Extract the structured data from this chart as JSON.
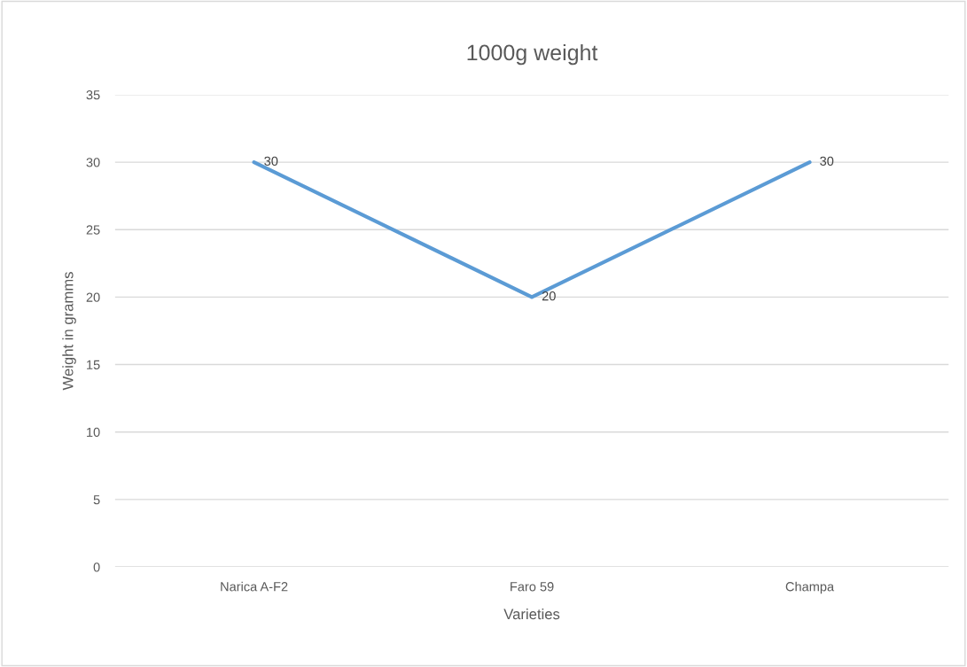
{
  "chart_data": {
    "type": "line",
    "title": "1000g weight",
    "xlabel": "Varieties",
    "ylabel": "Weight in gramms",
    "categories": [
      "Narica A-F2",
      "Faro 59",
      "Champa"
    ],
    "series": [
      {
        "color": "#5b9bd5",
        "values": [
          30,
          20,
          30
        ]
      }
    ],
    "ylim": [
      0,
      35
    ],
    "yticks": [
      0,
      5,
      10,
      15,
      20,
      25,
      30,
      35
    ],
    "grid": "y",
    "data_labels": true,
    "marker": "none",
    "line_style": "solid"
  }
}
